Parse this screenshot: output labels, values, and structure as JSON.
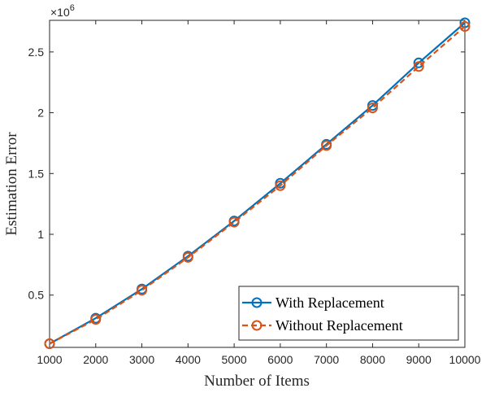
{
  "chart_data": {
    "type": "line",
    "title": "",
    "xlabel": "Number of Items",
    "ylabel": "Estimation Error",
    "y_exponent_label": "×10^6",
    "xlim": [
      1000,
      10000
    ],
    "ylim": [
      0.07,
      2.76
    ],
    "x": [
      1000,
      2000,
      3000,
      4000,
      5000,
      6000,
      7000,
      8000,
      9000,
      10000
    ],
    "x_ticks": [
      1000,
      2000,
      3000,
      4000,
      5000,
      6000,
      7000,
      8000,
      9000,
      10000
    ],
    "y_ticks": [
      0.5,
      1,
      1.5,
      2,
      2.5
    ],
    "y_tick_labels": [
      "0.5",
      "1",
      "1.5",
      "2",
      "2.5"
    ],
    "grid": false,
    "legend_position": "bottom-right",
    "series": [
      {
        "name": "With Replacement",
        "color": "#0072BD",
        "line_style": "solid",
        "marker": "circle",
        "values": [
          0.1,
          0.31,
          0.55,
          0.82,
          1.11,
          1.42,
          1.74,
          2.06,
          2.41,
          2.74
        ]
      },
      {
        "name": "Without Replacement",
        "color": "#D95319",
        "line_style": "dashed",
        "marker": "circle",
        "values": [
          0.1,
          0.3,
          0.54,
          0.81,
          1.1,
          1.4,
          1.73,
          2.04,
          2.38,
          2.71
        ]
      }
    ]
  }
}
